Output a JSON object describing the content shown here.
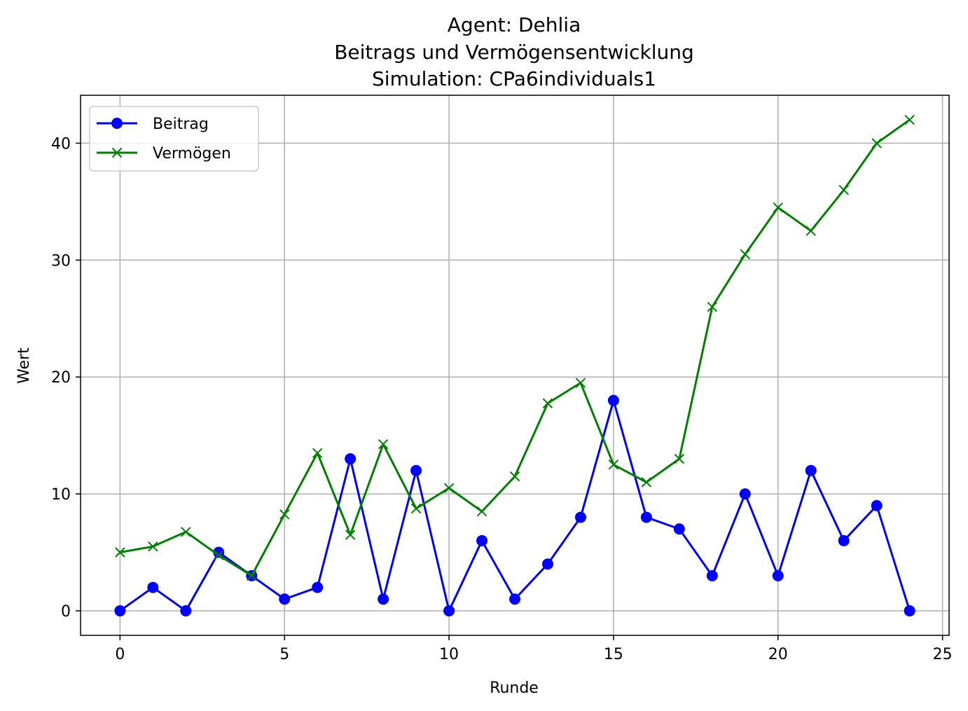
{
  "chart_data": {
    "type": "line",
    "title": [
      "Agent: Dehlia",
      "Beitrags und Vermögensentwicklung",
      "Simulation: CPa6individuals1"
    ],
    "xlabel": "Runde",
    "ylabel": "Wert",
    "xlim": [
      -1.2,
      25.2
    ],
    "ylim": [
      -2.1,
      44.1
    ],
    "xticks": [
      0,
      5,
      10,
      15,
      20,
      25
    ],
    "yticks": [
      0,
      10,
      20,
      30,
      40
    ],
    "grid": true,
    "legend_position": "upper-left",
    "x": [
      0,
      1,
      2,
      3,
      4,
      5,
      6,
      7,
      8,
      9,
      10,
      11,
      12,
      13,
      14,
      15,
      16,
      17,
      18,
      19,
      20,
      21,
      22,
      23,
      24
    ],
    "series": [
      {
        "name": "Beitrag",
        "color": "#0000ff",
        "marker": "circle",
        "values": [
          0,
          2,
          0,
          5,
          3,
          1,
          2,
          13,
          1,
          12,
          0,
          6,
          1,
          4,
          8,
          18,
          8,
          7,
          3,
          10,
          3,
          12,
          6,
          9,
          0
        ]
      },
      {
        "name": "Vermögen",
        "color": "#008000",
        "marker": "x",
        "values": [
          5,
          5.5,
          6.75,
          4.75,
          3,
          8.25,
          13.5,
          6.5,
          14.25,
          8.75,
          10.5,
          8.5,
          11.5,
          17.75,
          19.5,
          12.5,
          11,
          13,
          26,
          30.5,
          34.5,
          32.5,
          36,
          40,
          42
        ]
      }
    ]
  }
}
